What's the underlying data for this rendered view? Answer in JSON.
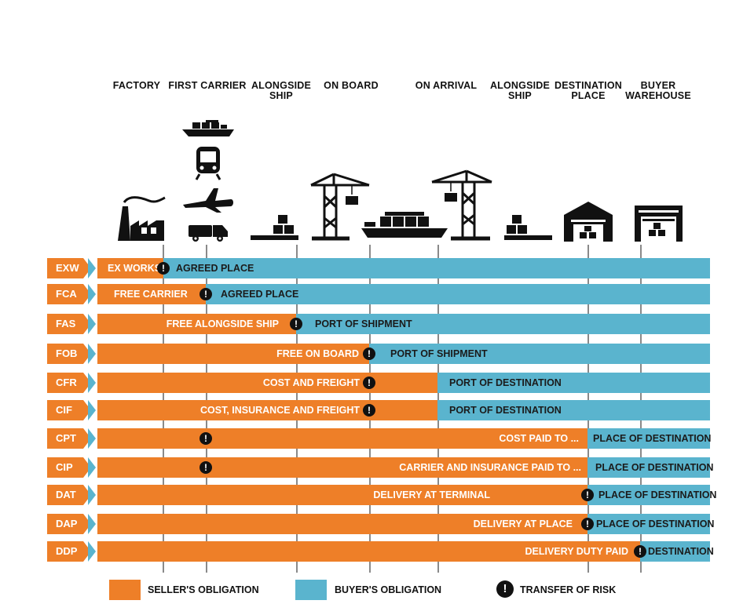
{
  "columns": [
    "FACTORY",
    "FIRST CARRIER",
    "ALONGSIDE SHIP",
    "ON BOARD",
    "ON ARRIVAL",
    "ALONGSIDE SHIP",
    "DESTINATION PLACE",
    "BUYER WAREHOUSE"
  ],
  "icons": [
    "factory-icon",
    "container-ship-icon",
    "train-icon",
    "airplane-icon",
    "truck-icon",
    "cargo-pallet-icon",
    "port-crane-icon",
    "cargo-ship-icon",
    "port-crane-icon",
    "cargo-pallet-icon",
    "warehouse-icon",
    "warehouse-icon"
  ],
  "colors": {
    "seller": "#ee7f28",
    "buyer": "#5ab4ce",
    "risk": "#111111"
  },
  "risk_symbol": "!",
  "rows": [
    {
      "code": "EXW",
      "seller_label": "EX WORKS",
      "buyer_label": "AGREED PLACE"
    },
    {
      "code": "FCA",
      "seller_label": "FREE CARRIER",
      "buyer_label": "AGREED PLACE"
    },
    {
      "code": "FAS",
      "seller_label": "FREE ALONGSIDE SHIP",
      "buyer_label": "PORT OF SHIPMENT"
    },
    {
      "code": "FOB",
      "seller_label": "FREE ON BOARD",
      "buyer_label": "PORT OF SHIPMENT"
    },
    {
      "code": "CFR",
      "seller_label": "COST AND FREIGHT",
      "buyer_label": "PORT OF DESTINATION"
    },
    {
      "code": "CIF",
      "seller_label": "COST, INSURANCE AND FREIGHT",
      "buyer_label": "PORT OF DESTINATION"
    },
    {
      "code": "CPT",
      "seller_label": "COST PAID TO ...",
      "buyer_label": "PLACE OF DESTINATION"
    },
    {
      "code": "CIP",
      "seller_label": "CARRIER AND INSURANCE PAID TO ...",
      "buyer_label": "PLACE OF DESTINATION"
    },
    {
      "code": "DAT",
      "seller_label": "DELIVERY AT TERMINAL",
      "buyer_label": "PLACE OF DESTINATION"
    },
    {
      "code": "DAP",
      "seller_label": "DELIVERY AT PLACE",
      "buyer_label": "PLACE OF DESTINATION"
    },
    {
      "code": "DDP",
      "seller_label": "DELIVERY DUTY PAID",
      "buyer_label": "DESTINATION"
    }
  ],
  "legend": {
    "seller": "SELLER'S OBLIGATION",
    "buyer": "BUYER'S OBLIGATION",
    "risk": "TRANSFER OF RISK"
  }
}
